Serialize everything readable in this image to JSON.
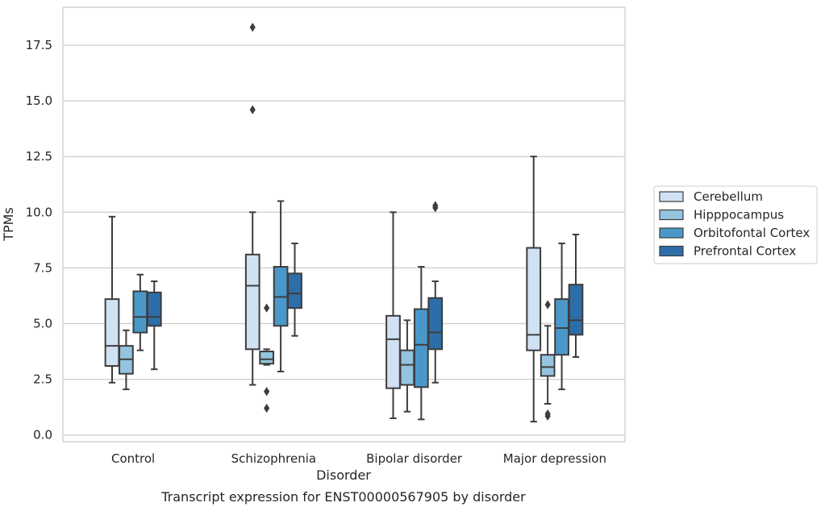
{
  "chart_data": {
    "type": "box",
    "title": "",
    "caption": "Transcript expression for ENST00000567905 by disorder",
    "xlabel": "Disorder",
    "ylabel": "TPMs",
    "ylim": [
      -0.3,
      19.2
    ],
    "yticks": [
      0.0,
      2.5,
      5.0,
      7.5,
      10.0,
      12.5,
      15.0,
      17.5
    ],
    "ytick_labels": [
      "0.0",
      "2.5",
      "5.0",
      "7.5",
      "10.0",
      "12.5",
      "15.0",
      "17.5"
    ],
    "grid": "horizontal",
    "legend_position": "right",
    "categories": [
      "Control",
      "Schizophrenia",
      "Bipolar disorder",
      "Major depression"
    ],
    "series": [
      {
        "name": "Cerebellum",
        "color": "#d0e1f2",
        "boxes": [
          {
            "whisker_low": 2.35,
            "q1": 3.1,
            "median": 4.0,
            "q3": 6.1,
            "whisker_high": 9.8,
            "outliers": []
          },
          {
            "whisker_low": 2.25,
            "q1": 3.85,
            "median": 6.7,
            "q3": 8.1,
            "whisker_high": 10.0,
            "outliers": [
              14.6,
              18.3
            ]
          },
          {
            "whisker_low": 0.75,
            "q1": 2.1,
            "median": 4.3,
            "q3": 5.35,
            "whisker_high": 10.0,
            "outliers": []
          },
          {
            "whisker_low": 0.6,
            "q1": 3.8,
            "median": 4.5,
            "q3": 8.4,
            "whisker_high": 12.5,
            "outliers": []
          }
        ]
      },
      {
        "name": "Hipppocampus",
        "color": "#94c4df",
        "boxes": [
          {
            "whisker_low": 2.05,
            "q1": 2.75,
            "median": 3.4,
            "q3": 4.0,
            "whisker_high": 4.7,
            "outliers": []
          },
          {
            "whisker_low": 3.15,
            "q1": 3.2,
            "median": 3.4,
            "q3": 3.75,
            "whisker_high": 3.85,
            "outliers": [
              1.2,
              1.95,
              5.7
            ]
          },
          {
            "whisker_low": 1.05,
            "q1": 2.25,
            "median": 3.15,
            "q3": 3.8,
            "whisker_high": 5.15,
            "outliers": []
          },
          {
            "whisker_low": 1.4,
            "q1": 2.65,
            "median": 3.05,
            "q3": 3.6,
            "whisker_high": 4.9,
            "outliers": [
              0.85,
              0.95,
              5.85
            ]
          }
        ]
      },
      {
        "name": "Orbitofontal Cortex",
        "color": "#4a98c9",
        "boxes": [
          {
            "whisker_low": 3.8,
            "q1": 4.6,
            "median": 5.3,
            "q3": 6.45,
            "whisker_high": 7.2,
            "outliers": []
          },
          {
            "whisker_low": 2.85,
            "q1": 4.9,
            "median": 6.2,
            "q3": 7.55,
            "whisker_high": 10.5,
            "outliers": []
          },
          {
            "whisker_low": 0.7,
            "q1": 2.15,
            "median": 4.05,
            "q3": 5.65,
            "whisker_high": 7.55,
            "outliers": []
          },
          {
            "whisker_low": 2.05,
            "q1": 3.6,
            "median": 4.8,
            "q3": 6.1,
            "whisker_high": 8.6,
            "outliers": []
          }
        ]
      },
      {
        "name": "Prefrontal Cortex",
        "color": "#2e6ea8",
        "boxes": [
          {
            "whisker_low": 2.95,
            "q1": 4.9,
            "median": 5.3,
            "q3": 6.4,
            "whisker_high": 6.9,
            "outliers": []
          },
          {
            "whisker_low": 4.45,
            "q1": 5.7,
            "median": 6.35,
            "q3": 7.25,
            "whisker_high": 8.6,
            "outliers": []
          },
          {
            "whisker_low": 2.35,
            "q1": 3.85,
            "median": 4.6,
            "q3": 6.15,
            "whisker_high": 6.9,
            "outliers": [
              10.2,
              10.3
            ]
          },
          {
            "whisker_low": 3.5,
            "q1": 4.5,
            "median": 5.15,
            "q3": 6.75,
            "whisker_high": 9.0,
            "outliers": []
          }
        ]
      }
    ]
  }
}
